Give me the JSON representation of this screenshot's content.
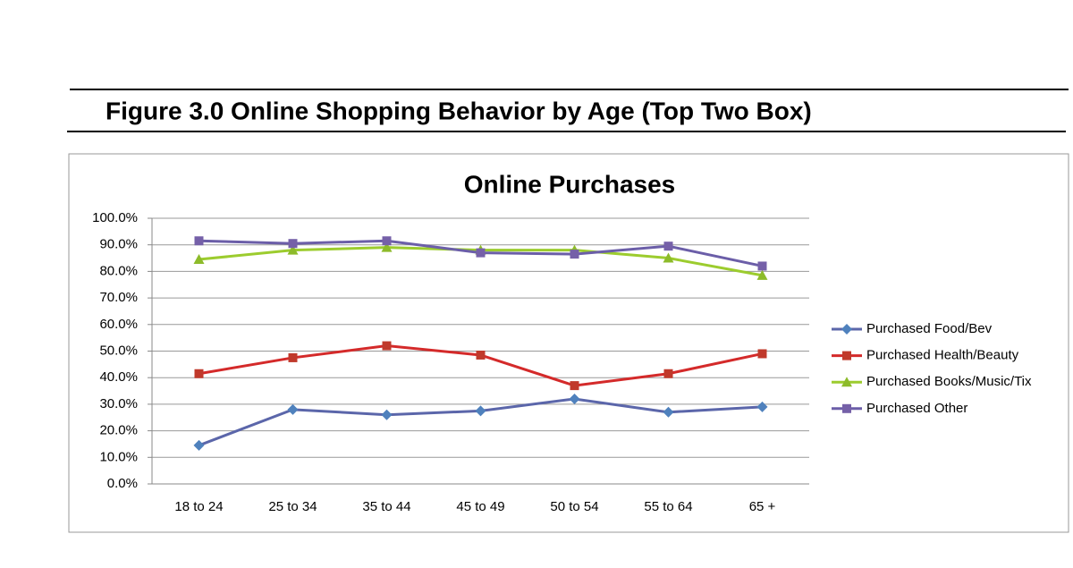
{
  "header": {
    "title": "Figure 3.0 Online Shopping Behavior by Age (Top Two Box)"
  },
  "chart_data": {
    "type": "line",
    "title": "Online Purchases",
    "categories": [
      "18 to 24",
      "25 to 34",
      "35 to 44",
      "45 to 49",
      "50 to 54",
      "55 to 64",
      "65 +"
    ],
    "series": [
      {
        "name": "Purchased Food/Bev",
        "color": "#5b66aa",
        "marker_color": "#4f81bd",
        "marker": "diamond",
        "values": [
          14.5,
          28,
          26,
          27.5,
          32,
          27,
          29
        ]
      },
      {
        "name": "Purchased Health/Beauty",
        "color": "#d42a2a",
        "marker_color": "#c0392b",
        "marker": "square",
        "values": [
          41.5,
          47.5,
          52,
          48.5,
          37,
          41.5,
          49
        ]
      },
      {
        "name": "Purchased Books/Music/Tix",
        "color": "#9ccc2e",
        "marker_color": "#8dbb2a",
        "marker": "triangle",
        "values": [
          84.5,
          88,
          89,
          88,
          88,
          85,
          78.5
        ]
      },
      {
        "name": "Purchased Other",
        "color": "#6b5ea8",
        "marker_color": "#7560a8",
        "marker": "square",
        "values": [
          91.5,
          90.5,
          91.5,
          87,
          86.5,
          89.5,
          82
        ]
      }
    ],
    "ylim": [
      0,
      100
    ],
    "yticks": [
      {
        "value": 0,
        "label": "0.0%"
      },
      {
        "value": 10,
        "label": "10.0%"
      },
      {
        "value": 20,
        "label": "20.0%"
      },
      {
        "value": 30,
        "label": "30.0%"
      },
      {
        "value": 40,
        "label": "40.0%"
      },
      {
        "value": 50,
        "label": "50.0%"
      },
      {
        "value": 60,
        "label": "60.0%"
      },
      {
        "value": 70,
        "label": "70.0%"
      },
      {
        "value": 80,
        "label": "80.0%"
      },
      {
        "value": 90,
        "label": "90.0%"
      },
      {
        "value": 100,
        "label": "100.0%"
      }
    ],
    "grid": true,
    "legend": "right"
  }
}
